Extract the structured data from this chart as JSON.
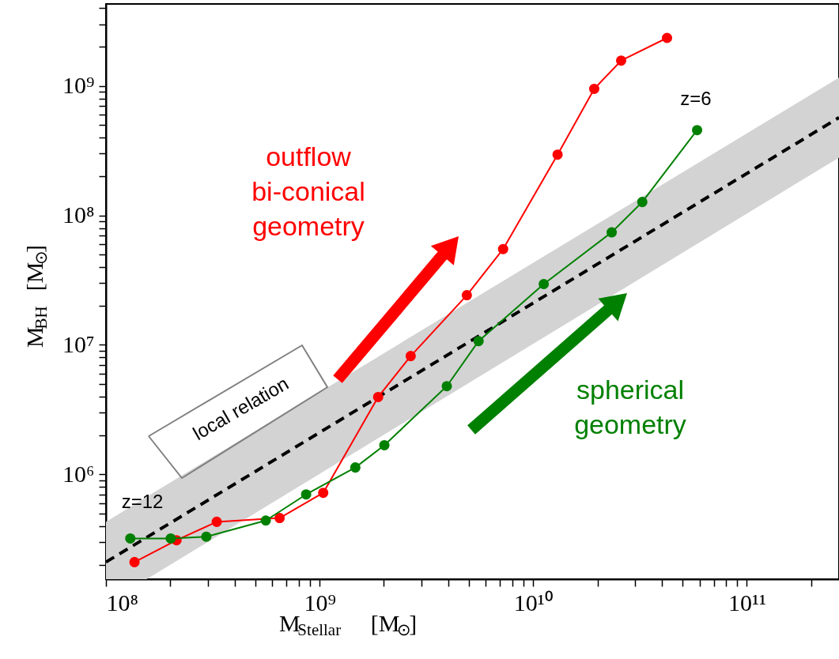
{
  "chart_data": {
    "type": "line",
    "xlabel": "M$_{Stellar}$  [M$_{⊙}$]",
    "ylabel": "M$_{BH}$  [M$_{⊙}$]",
    "log": "xy",
    "grid": false,
    "marker": "circle",
    "line_style": "solid",
    "xlim": [
      100000000.0,
      270000000000.0
    ],
    "ylim": [
      155000.0,
      4300000000.0
    ],
    "xticks": [
      {
        "value": 100000000.0,
        "label": "10⁸"
      },
      {
        "value": 200000000.0,
        "label": null
      },
      {
        "value": 300000000.0,
        "label": null
      },
      {
        "value": 400000000.0,
        "label": null
      },
      {
        "value": 500000000.0,
        "label": null
      },
      {
        "value": 600000000.0,
        "label": null
      },
      {
        "value": 700000000.0,
        "label": null
      },
      {
        "value": 800000000.0,
        "label": null
      },
      {
        "value": 900000000.0,
        "label": null
      },
      {
        "value": 1000000000.0,
        "label": "10⁹"
      },
      {
        "value": 2000000000.0,
        "label": null
      },
      {
        "value": 3000000000.0,
        "label": null
      },
      {
        "value": 4000000000.0,
        "label": null
      },
      {
        "value": 5000000000.0,
        "label": null
      },
      {
        "value": 6000000000.0,
        "label": null
      },
      {
        "value": 7000000000.0,
        "label": null
      },
      {
        "value": 8000000000.0,
        "label": null
      },
      {
        "value": 9000000000.0,
        "label": null
      },
      {
        "value": 10000000000.0,
        "label": "10¹⁰"
      },
      {
        "value": 20000000000.0,
        "label": null
      },
      {
        "value": 30000000000.0,
        "label": null
      },
      {
        "value": 40000000000.0,
        "label": null
      },
      {
        "value": 50000000000.0,
        "label": null
      },
      {
        "value": 60000000000.0,
        "label": null
      },
      {
        "value": 70000000000.0,
        "label": null
      },
      {
        "value": 80000000000.0,
        "label": null
      },
      {
        "value": 90000000000.0,
        "label": null
      },
      {
        "value": 100000000000.0,
        "label": "10¹¹"
      },
      {
        "value": 200000000000.0,
        "label": null
      }
    ],
    "yticks": [
      {
        "value": 200000.0,
        "label": null
      },
      {
        "value": 300000.0,
        "label": null
      },
      {
        "value": 400000.0,
        "label": null
      },
      {
        "value": 500000.0,
        "label": null
      },
      {
        "value": 600000.0,
        "label": null
      },
      {
        "value": 700000.0,
        "label": null
      },
      {
        "value": 800000.0,
        "label": null
      },
      {
        "value": 900000.0,
        "label": null
      },
      {
        "value": 1000000.0,
        "label": "10⁶"
      },
      {
        "value": 2000000.0,
        "label": null
      },
      {
        "value": 3000000.0,
        "label": null
      },
      {
        "value": 4000000.0,
        "label": null
      },
      {
        "value": 5000000.0,
        "label": null
      },
      {
        "value": 6000000.0,
        "label": null
      },
      {
        "value": 7000000.0,
        "label": null
      },
      {
        "value": 8000000.0,
        "label": null
      },
      {
        "value": 9000000.0,
        "label": null
      },
      {
        "value": 10000000.0,
        "label": "10⁷"
      },
      {
        "value": 20000000.0,
        "label": null
      },
      {
        "value": 30000000.0,
        "label": null
      },
      {
        "value": 40000000.0,
        "label": null
      },
      {
        "value": 50000000.0,
        "label": null
      },
      {
        "value": 60000000.0,
        "label": null
      },
      {
        "value": 70000000.0,
        "label": null
      },
      {
        "value": 80000000.0,
        "label": null
      },
      {
        "value": 90000000.0,
        "label": null
      },
      {
        "value": 100000000.0,
        "label": "10⁸"
      },
      {
        "value": 200000000.0,
        "label": null
      },
      {
        "value": 300000000.0,
        "label": null
      },
      {
        "value": 400000000.0,
        "label": null
      },
      {
        "value": 500000000.0,
        "label": null
      },
      {
        "value": 600000000.0,
        "label": null
      },
      {
        "value": 700000000.0,
        "label": null
      },
      {
        "value": 800000000.0,
        "label": null
      },
      {
        "value": 900000000.0,
        "label": null
      },
      {
        "value": 1000000000.0,
        "label": "10⁹"
      },
      {
        "value": 2000000000.0,
        "label": null
      },
      {
        "value": 3000000000.0,
        "label": null
      },
      {
        "value": 4000000000.0,
        "label": null
      }
    ],
    "series": [
      {
        "name": "local relation",
        "color": "#000000",
        "marker": "none",
        "line_style": "dashed",
        "x": [
          100000000.0,
          155000000.0,
          270000000000.0
        ],
        "values": [
          210000.0,
          326000.0,
          570000000.0
        ],
        "lower": [
          155000.0,
          155000.0,
          280000000.0
        ],
        "upper": [
          430000.0,
          670000.0,
          1160000000.0
        ]
      },
      {
        "name": "outflow bi-conical geometry",
        "color": "#ff0000",
        "x": [
          136000000.0,
          214000000.0,
          330000000.0,
          650000000.0,
          1040000000.0,
          1880000000.0,
          2670000000.0,
          4890000000.0,
          7230000000.0,
          13000000000.0,
          19300000000.0,
          25800000000.0,
          42300000000.0
        ],
        "values": [
          210000.0,
          310000.0,
          430000.0,
          460000.0,
          720000.0,
          3960000.0,
          8200000.0,
          24200000.0,
          55000000.0,
          295000000.0,
          950000000.0,
          1570000000.0,
          2350000000.0
        ]
      },
      {
        "name": "spherical geometry",
        "color": "#008000",
        "x": [
          130000000.0,
          201000000.0,
          295000000.0,
          560000000.0,
          865000000.0,
          1470000000.0,
          2010000000.0,
          3940000000.0,
          5550000000.0,
          11200000000.0,
          23300000000.0,
          32400000000.0,
          58500000000.0
        ],
        "values": [
          320000.0,
          320000.0,
          330000.0,
          440000.0,
          700000.0,
          1130000.0,
          1680000.0,
          4800000.0,
          10700000.0,
          29500000.0,
          74000000.0,
          127000000.0,
          456000000.0
        ]
      }
    ],
    "annotations": [
      "z=12",
      "z=6"
    ]
  }
}
